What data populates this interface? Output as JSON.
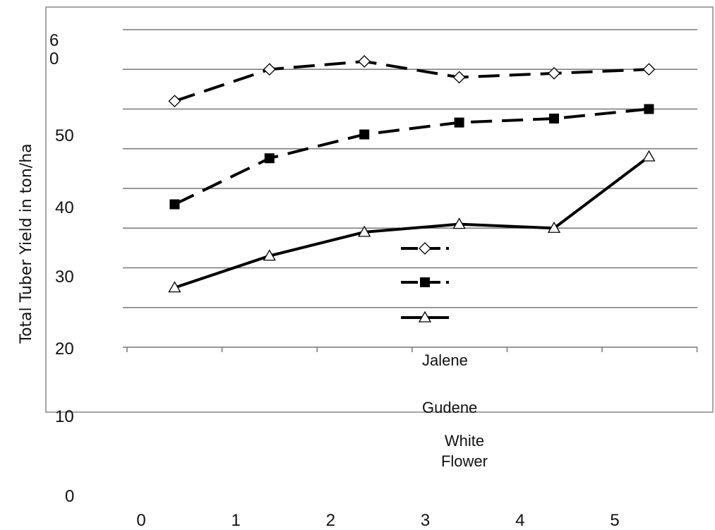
{
  "chart_data": {
    "type": "line",
    "title": "",
    "xlabel": "",
    "ylabel": "Total Tuber Yield in ton/ha",
    "ylim": [
      20,
      60
    ],
    "y_tick_labels": [
      "6\n0",
      "50",
      "40",
      "30",
      "20"
    ],
    "outer_y_tick_labels": [
      "10",
      "0"
    ],
    "x_tick_labels": [
      "0",
      "1",
      "2",
      "3",
      "4",
      "5"
    ],
    "grid": true,
    "legend_position": "center",
    "x": [
      1,
      2,
      3,
      4,
      5,
      6
    ],
    "series": [
      {
        "name": "Jalene",
        "marker": "diamond-open",
        "line": "dashed",
        "values": [
          51,
          55,
          56,
          54,
          54.5,
          55
        ]
      },
      {
        "name": "Gudene",
        "marker": "square-filled",
        "line": "dashed",
        "values": [
          38,
          43.8,
          46.8,
          48.3,
          48.8,
          50
        ]
      },
      {
        "name": "White Flower",
        "marker": "triangle-open",
        "line": "solid",
        "values": [
          27.5,
          31.5,
          34.5,
          35.5,
          35,
          44
        ]
      }
    ]
  }
}
